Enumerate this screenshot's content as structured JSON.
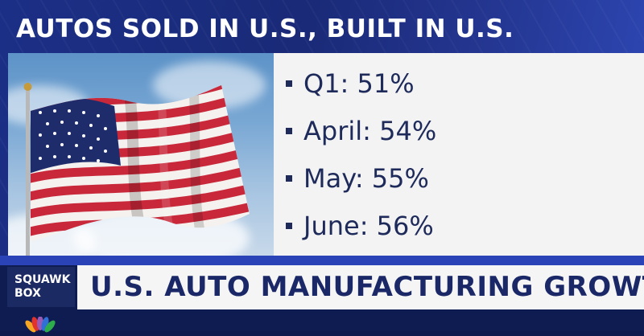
{
  "headline": "AUTOS SOLD IN U.S., BUILT IN U.S.",
  "bullets": [
    {
      "label": "Q1:  51%"
    },
    {
      "label": "April: 54%"
    },
    {
      "label": "May: 55%"
    },
    {
      "label": "June: 56%"
    }
  ],
  "show": {
    "line1": "SQUAWK",
    "line2": "BOX"
  },
  "lower_third": "U.S. AUTO MANUFACTURING GROWTH",
  "colors": {
    "headline_bg": "#1b2f86",
    "banner_text": "#1b2868",
    "bullet_text": "#1d2a5a",
    "flag_red": "#c8283a",
    "flag_blue": "#1f2c6c"
  },
  "icons": {
    "flag": "us-flag-photo",
    "network": "peacock-logo-icon"
  }
}
